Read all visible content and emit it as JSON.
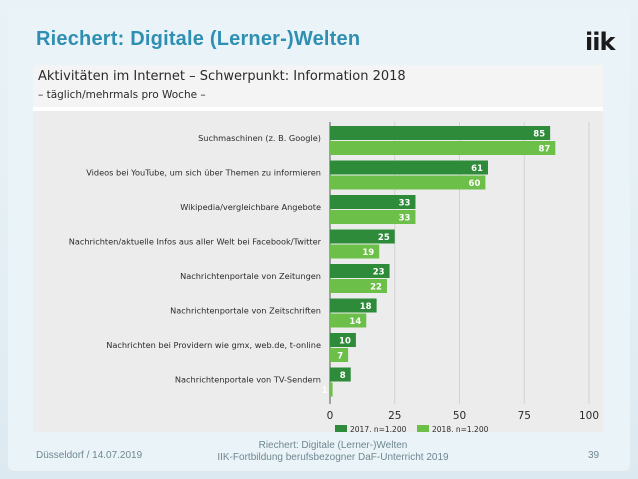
{
  "slide": {
    "title": "Riechert: Digitale (Lerner-)Welten",
    "logo_text": "iik",
    "footer_left": "Düsseldorf / 14.07.2019",
    "footer_center_line1": "Riechert: Digitale (Lerner-)Welten",
    "footer_center_line2": "IIK-Fortbildung berufsbezogner DaF-Unterricht 2019",
    "page_number": "39"
  },
  "chart_data": {
    "type": "bar",
    "orientation": "horizontal",
    "title": "Aktivitäten im Internet – Schwerpunkt: Information 2018",
    "subtitle": "– täglich/mehrmals pro Woche –",
    "categories": [
      "Suchmaschinen (z. B. Google)",
      "Videos bei YouTube, um sich über Themen zu informieren",
      "Wikipedia/vergleichbare Angebote",
      "Nachrichten/aktuelle Infos aus aller Welt bei Facebook/Twitter",
      "Nachrichtenportale von Zeitungen",
      "Nachrichtenportale von Zeitschriften",
      "Nachrichten bei Providern wie gmx, web.de, t-online",
      "Nachrichtenportale von TV-Sendern"
    ],
    "series": [
      {
        "name": "2017, n=1.200",
        "color": "#2e8b3a",
        "values": [
          85,
          61,
          33,
          25,
          23,
          18,
          10,
          8
        ]
      },
      {
        "name": "2018, n=1.200",
        "color": "#6cc04a",
        "values": [
          87,
          60,
          33,
          19,
          22,
          14,
          7,
          1
        ]
      }
    ],
    "x_ticks": [
      "0",
      "25",
      "50",
      "75",
      "100"
    ],
    "xlim": [
      0,
      100
    ],
    "legend_position": "bottom-right",
    "grid": true
  }
}
